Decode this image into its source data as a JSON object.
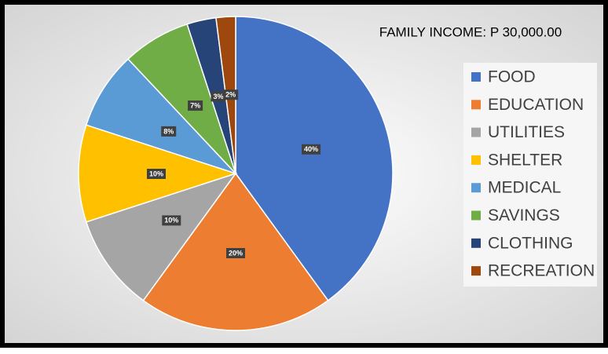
{
  "chart_data": {
    "type": "pie",
    "title": "FAMILY INCOME: P 30,000.00",
    "categories": [
      "FOOD",
      "EDUCATION",
      "UTILITIES",
      "SHELTER",
      "MEDICAL",
      "SAVINGS",
      "CLOTHING",
      "RECREATION"
    ],
    "values": [
      40,
      20,
      10,
      10,
      8,
      7,
      3,
      2
    ],
    "value_labels": [
      "40%",
      "20%",
      "10%",
      "10%",
      "8%",
      "7%",
      "3%",
      "2%"
    ],
    "colors": [
      "#4472c4",
      "#ed7d31",
      "#a5a5a5",
      "#ffc000",
      "#5b9bd5",
      "#70ad47",
      "#264478",
      "#9e480e"
    ],
    "legend": "right"
  }
}
